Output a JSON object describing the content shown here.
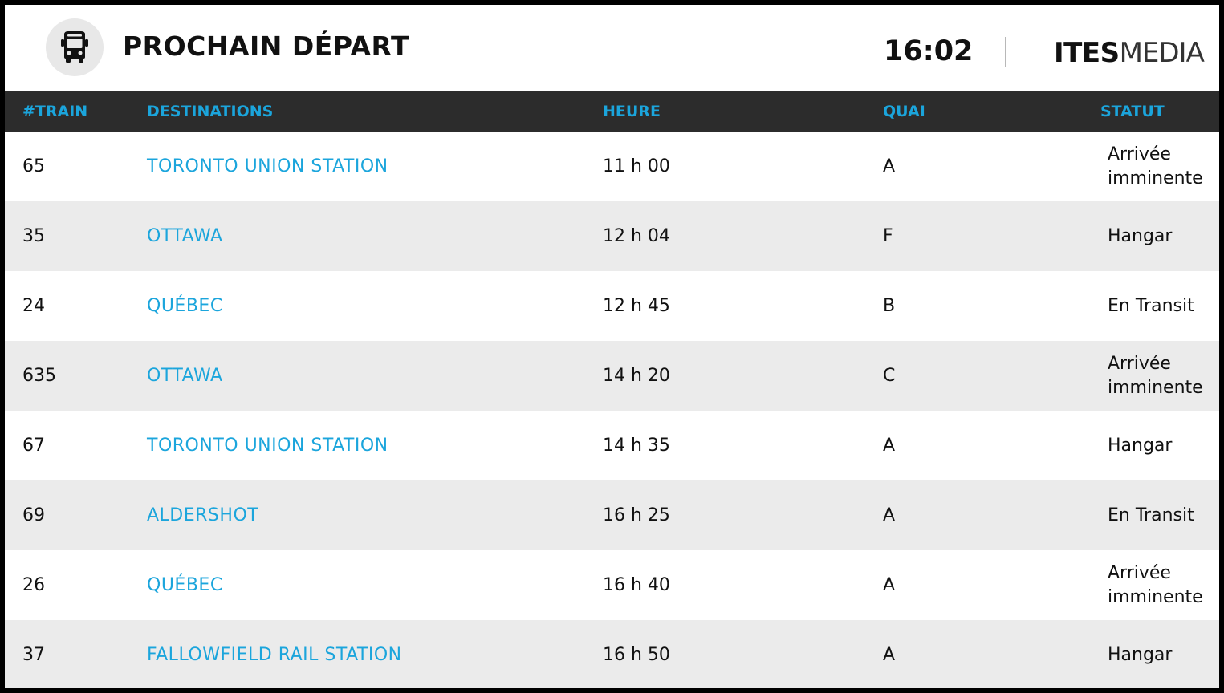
{
  "header": {
    "title": "PROCHAIN DÉPART",
    "time": "16:02",
    "brand_bold": "ITES",
    "brand_light": "MEDIA",
    "icon": "bus-icon"
  },
  "table": {
    "columns": [
      "#TRAIN",
      "DESTINATIONS",
      "HEURE",
      "QUAI",
      "STATUT"
    ],
    "rows": [
      {
        "train": "65",
        "destination": "TORONTO UNION STATION",
        "time": "11 h 00",
        "platform": "A",
        "status": "Arrivée imminente"
      },
      {
        "train": "35",
        "destination": "OTTAWA",
        "time": "12 h 04",
        "platform": "F",
        "status": "Hangar"
      },
      {
        "train": "24",
        "destination": "QUÉBEC",
        "time": "12 h 45",
        "platform": "B",
        "status": "En Transit"
      },
      {
        "train": "635",
        "destination": "OTTAWA",
        "time": "14 h 20",
        "platform": "C",
        "status": "Arrivée imminente"
      },
      {
        "train": "67",
        "destination": "TORONTO UNION STATION",
        "time": "14 h 35",
        "platform": "A",
        "status": "Hangar"
      },
      {
        "train": "69",
        "destination": "ALDERSHOT",
        "time": "16 h 25",
        "platform": "A",
        "status": "En Transit"
      },
      {
        "train": "26",
        "destination": "QUÉBEC",
        "time": "16 h 40",
        "platform": "A",
        "status": "Arrivée imminente"
      },
      {
        "train": "37",
        "destination": "FALLOWFIELD RAIL STATION",
        "time": "16 h 50",
        "platform": "A",
        "status": "Hangar"
      }
    ]
  },
  "colors": {
    "accent": "#1ba5dc",
    "header_bar": "#2c2c2c",
    "row_alt": "#ebebeb",
    "border": "#000000"
  }
}
